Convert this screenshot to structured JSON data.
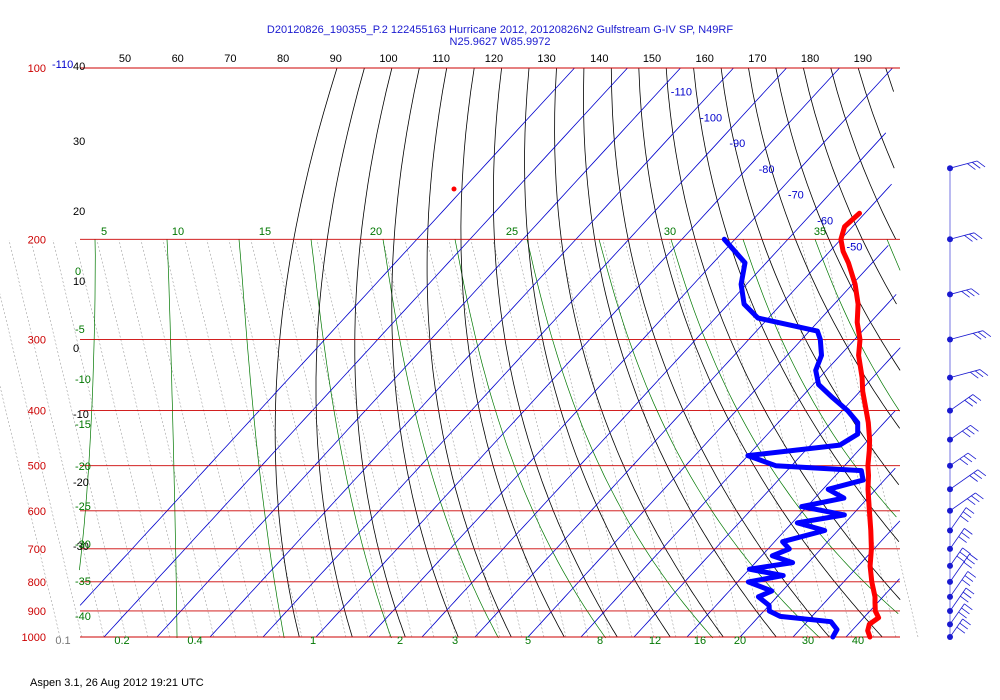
{
  "header": {
    "title_line1": "D20120826_190355_P.2 122455163 Hurricane 2012, 20120826N2 Gulfstream G-IV SP, N49RF",
    "title_line2": "N25.9627 W85.9972"
  },
  "footer": {
    "text": "Aspen 3.1, 26 Aug 2012  19:21 UTC"
  },
  "colors": {
    "isobar": "#cc0000",
    "temperature": "#ff0000",
    "dewpoint": "#0000ff",
    "isotherm": "#0000cc",
    "dry_adiabat": "#000000",
    "moist_adiabat": "#007700",
    "mixing_ratio": "#007700",
    "wind_barb": "#1a1ad0"
  },
  "chart_data": {
    "type": "line",
    "subtype": "skew-T log-P sounding",
    "xlabel": "",
    "ylabel": "",
    "pressure_levels": [
      100,
      200,
      300,
      400,
      500,
      600,
      700,
      800,
      900,
      1000
    ],
    "top_scale_ticks": [
      50,
      60,
      70,
      80,
      90,
      100,
      110,
      120,
      130,
      140,
      150,
      160,
      170,
      180,
      190
    ],
    "isotherm_labels": [
      -110,
      -100,
      -90,
      -80,
      -70,
      -60,
      -50,
      -40,
      -30,
      -20,
      -10,
      0,
      10,
      20,
      30,
      40
    ],
    "dry_adiabat_labels": [
      40,
      30,
      20,
      10,
      0,
      -10,
      -20,
      -30
    ],
    "moist_adiabat_labels": [
      5,
      10,
      15,
      20,
      25,
      30,
      35
    ],
    "left_theta_labels": [
      0,
      -5,
      -10,
      -15,
      -20,
      -25,
      -30,
      -35,
      -40
    ],
    "mixing_ratio_labels": [
      "0.1",
      "0.2",
      "0.4",
      "1",
      "2",
      "3",
      "5",
      "8",
      "12",
      "16",
      "20",
      "30",
      "40"
    ],
    "series": [
      {
        "name": "",
        "role": "temperature",
        "color": "#ff0000",
        "points": [
          [
            1000,
            24.5
          ],
          [
            975,
            23.0
          ],
          [
            950,
            22.2
          ],
          [
            925,
            22.8
          ],
          [
            900,
            21.0
          ],
          [
            870,
            19.5
          ],
          [
            850,
            18.5
          ],
          [
            800,
            15.3
          ],
          [
            750,
            12.2
          ],
          [
            700,
            9.5
          ],
          [
            650,
            6.2
          ],
          [
            600,
            2.5
          ],
          [
            550,
            -1.5
          ],
          [
            520,
            -3.8
          ],
          [
            500,
            -5.6
          ],
          [
            470,
            -8.0
          ],
          [
            450,
            -9.8
          ],
          [
            420,
            -13.0
          ],
          [
            400,
            -15.5
          ],
          [
            370,
            -19.5
          ],
          [
            350,
            -22.0
          ],
          [
            320,
            -26.5
          ],
          [
            300,
            -29.0
          ],
          [
            280,
            -32.5
          ],
          [
            260,
            -35.5
          ],
          [
            240,
            -39.5
          ],
          [
            220,
            -44.5
          ],
          [
            210,
            -47.5
          ],
          [
            200,
            -50.0
          ],
          [
            190,
            -51.5
          ],
          [
            180,
            -51.0
          ]
        ]
      },
      {
        "name": "",
        "role": "dewpoint",
        "color": "#0000ff",
        "points": [
          [
            1000,
            17.5
          ],
          [
            970,
            17.0
          ],
          [
            940,
            14.5
          ],
          [
            920,
            4.0
          ],
          [
            900,
            1.0
          ],
          [
            880,
            0.0
          ],
          [
            850,
            -3.5
          ],
          [
            830,
            -2.0
          ],
          [
            800,
            -8.0
          ],
          [
            780,
            -2.5
          ],
          [
            760,
            -10.0
          ],
          [
            740,
            -3.0
          ],
          [
            720,
            -8.0
          ],
          [
            700,
            -6.0
          ],
          [
            680,
            -8.5
          ],
          [
            650,
            -2.5
          ],
          [
            630,
            -9.0
          ],
          [
            610,
            -1.5
          ],
          [
            590,
            -11.0
          ],
          [
            570,
            -4.5
          ],
          [
            550,
            -9.0
          ],
          [
            530,
            -4.0
          ],
          [
            510,
            -6.0
          ],
          [
            500,
            -23.0
          ],
          [
            480,
            -30.0
          ],
          [
            460,
            -14.5
          ],
          [
            440,
            -13.0
          ],
          [
            420,
            -15.0
          ],
          [
            400,
            -19.0
          ],
          [
            380,
            -24.0
          ],
          [
            360,
            -29.0
          ],
          [
            340,
            -32.0
          ],
          [
            320,
            -33.5
          ],
          [
            300,
            -36.5
          ],
          [
            290,
            -38.5
          ],
          [
            275,
            -52.0
          ],
          [
            260,
            -57.0
          ],
          [
            240,
            -61.0
          ],
          [
            220,
            -64.0
          ],
          [
            200,
            -72.0
          ]
        ]
      }
    ],
    "wind_profile_levels": [
      1000,
      950,
      900,
      850,
      800,
      750,
      700,
      650,
      600,
      550,
      500,
      450,
      400,
      350,
      300,
      250,
      200,
      150
    ]
  }
}
